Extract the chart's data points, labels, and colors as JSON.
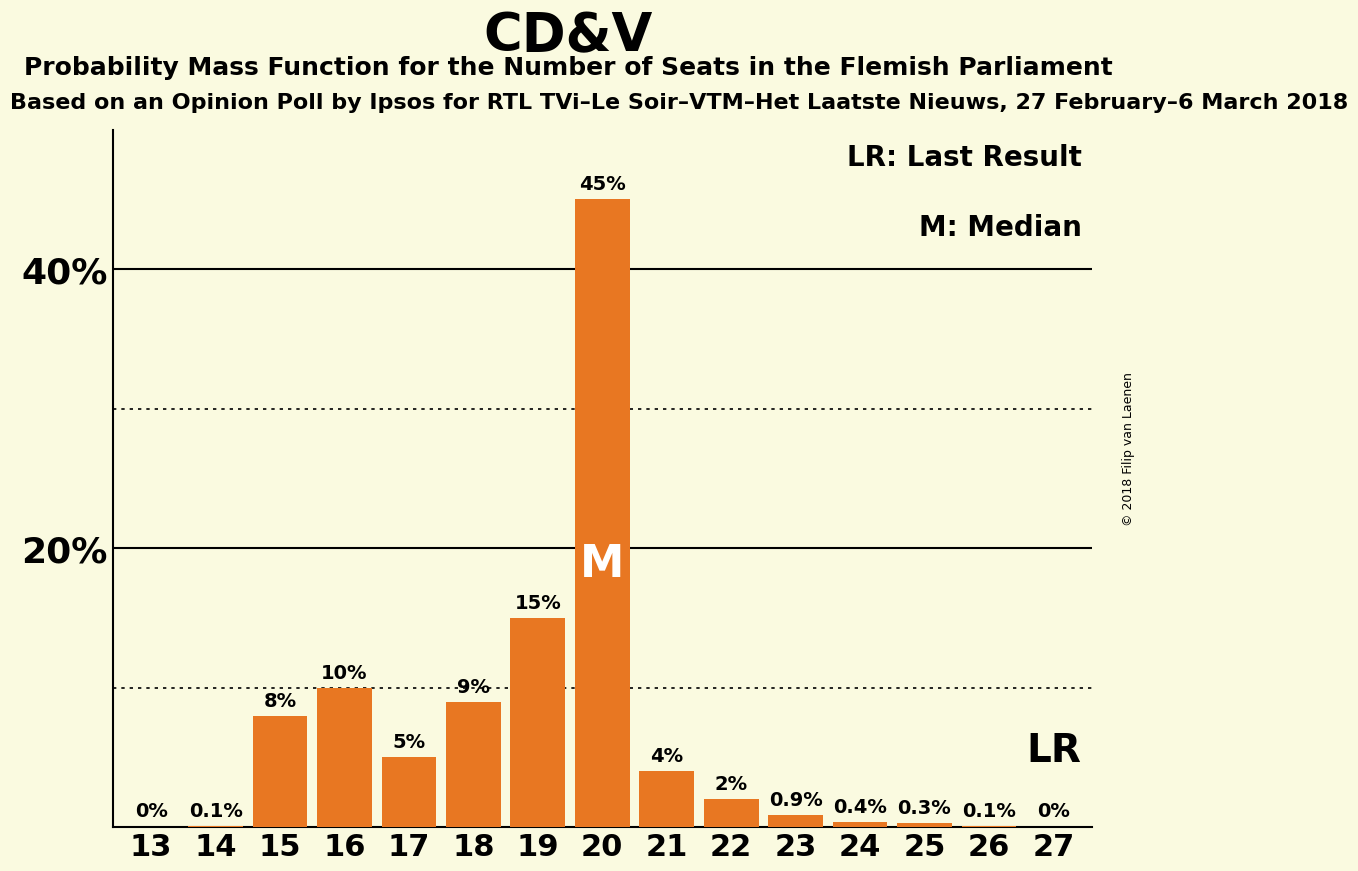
{
  "title": "CD&V",
  "subtitle": "Probability Mass Function for the Number of Seats in the Flemish Parliament",
  "subtitle2": "Based on an Opinion Poll by Ipsos for RTL TVi–Le Soir–VTM–Het Laatste Nieuws, 27 February–6 March 2018",
  "copyright": "© 2018 Filip van Laenen",
  "seats": [
    13,
    14,
    15,
    16,
    17,
    18,
    19,
    20,
    21,
    22,
    23,
    24,
    25,
    26,
    27
  ],
  "probabilities": [
    0.0,
    0.1,
    8.0,
    10.0,
    5.0,
    9.0,
    15.0,
    45.0,
    4.0,
    2.0,
    0.9,
    0.4,
    0.3,
    0.1,
    0.0
  ],
  "labels": [
    "0%",
    "0.1%",
    "8%",
    "10%",
    "5%",
    "9%",
    "15%",
    "45%",
    "4%",
    "2%",
    "0.9%",
    "0.4%",
    "0.3%",
    "0.1%",
    "0%"
  ],
  "bar_color": "#E87722",
  "background_color": "#FAFAE0",
  "median_seat": 20,
  "lr_seat": 27,
  "ylim": [
    0,
    50
  ],
  "title_fontsize": 38,
  "subtitle_fontsize": 18,
  "subtitle2_fontsize": 16,
  "bar_label_fontsize": 14,
  "axis_tick_fontsize": 22,
  "ytick_fontsize": 26,
  "legend_fontsize": 20,
  "lr_fontsize": 28,
  "m_fontsize": 32
}
